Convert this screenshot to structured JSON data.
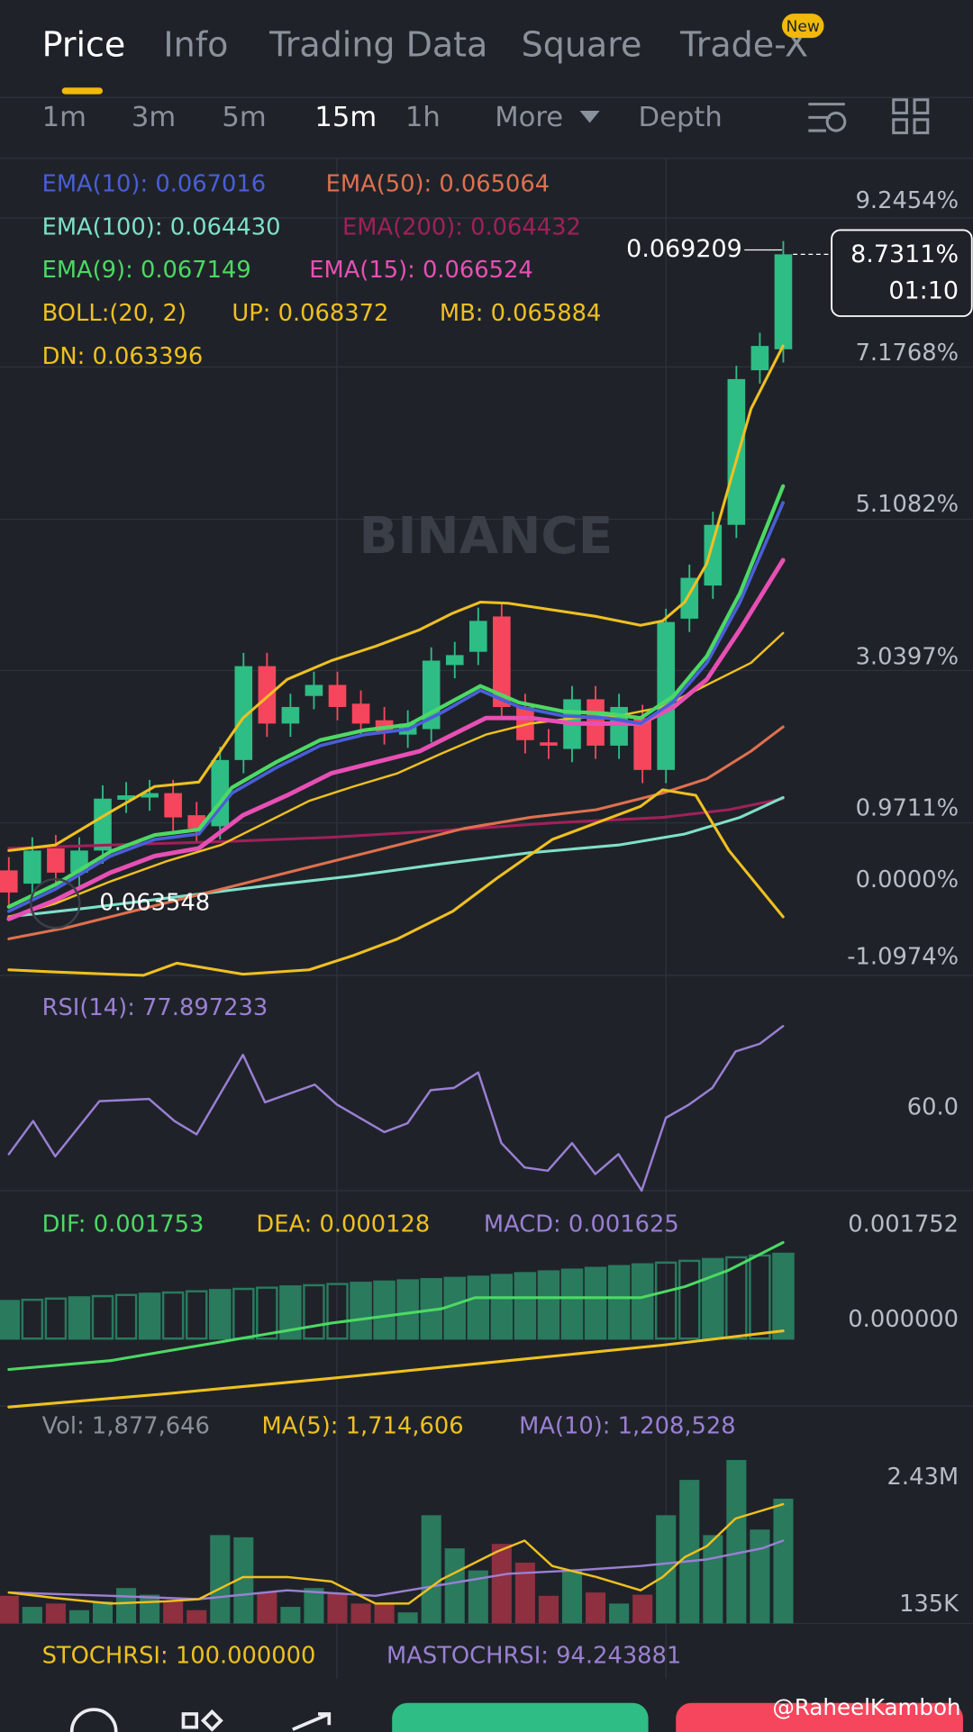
{
  "tabs": {
    "items": [
      "Price",
      "Info",
      "Trading Data",
      "Square",
      "Trade-X"
    ],
    "badge": "New"
  },
  "intervals": [
    "1m",
    "3m",
    "5m",
    "15m",
    "1h",
    "More",
    "Depth"
  ],
  "price_panel": {
    "legend": [
      "EMA(10): 0.067016",
      "EMA(50): 0.065064",
      "EMA(100): 0.064430",
      "EMA(200): 0.064432",
      "EMA(9): 0.067149",
      "EMA(15): 0.066524",
      "BOLL:(20, 2)",
      "UP: 0.068372",
      "MB: 0.065884",
      "DN: 0.063396"
    ],
    "axis_labels": [
      "9.2454%",
      "7.1768%",
      "5.1082%",
      "3.0397%",
      "0.9711%",
      "0.0000%",
      "-1.0974%"
    ],
    "high_label": "0.069209",
    "current_change": "8.7311%",
    "countdown": "01:10",
    "low_label": "0.063548",
    "watermark": "BINANCE"
  },
  "rsi_panel": {
    "legend": "RSI(14): 77.897233",
    "axis_label": "60.0"
  },
  "macd_panel": {
    "legend": [
      "DIF: 0.001753",
      "DEA: 0.000128",
      "MACD: 0.001625"
    ],
    "axis_labels": [
      "0.001752",
      "0.000000"
    ]
  },
  "volume_panel": {
    "legend": [
      "Vol: 1,877,646",
      "MA(5): 1,714,606",
      "MA(10): 1,208,528"
    ],
    "axis_labels": [
      "2.43M",
      "135K"
    ]
  },
  "stochrsi_panel": {
    "legend": [
      "STOCHRSI: 100.000000",
      "MASTOCHRSI: 94.243881"
    ]
  },
  "credit": "@RaheelKamboh"
}
